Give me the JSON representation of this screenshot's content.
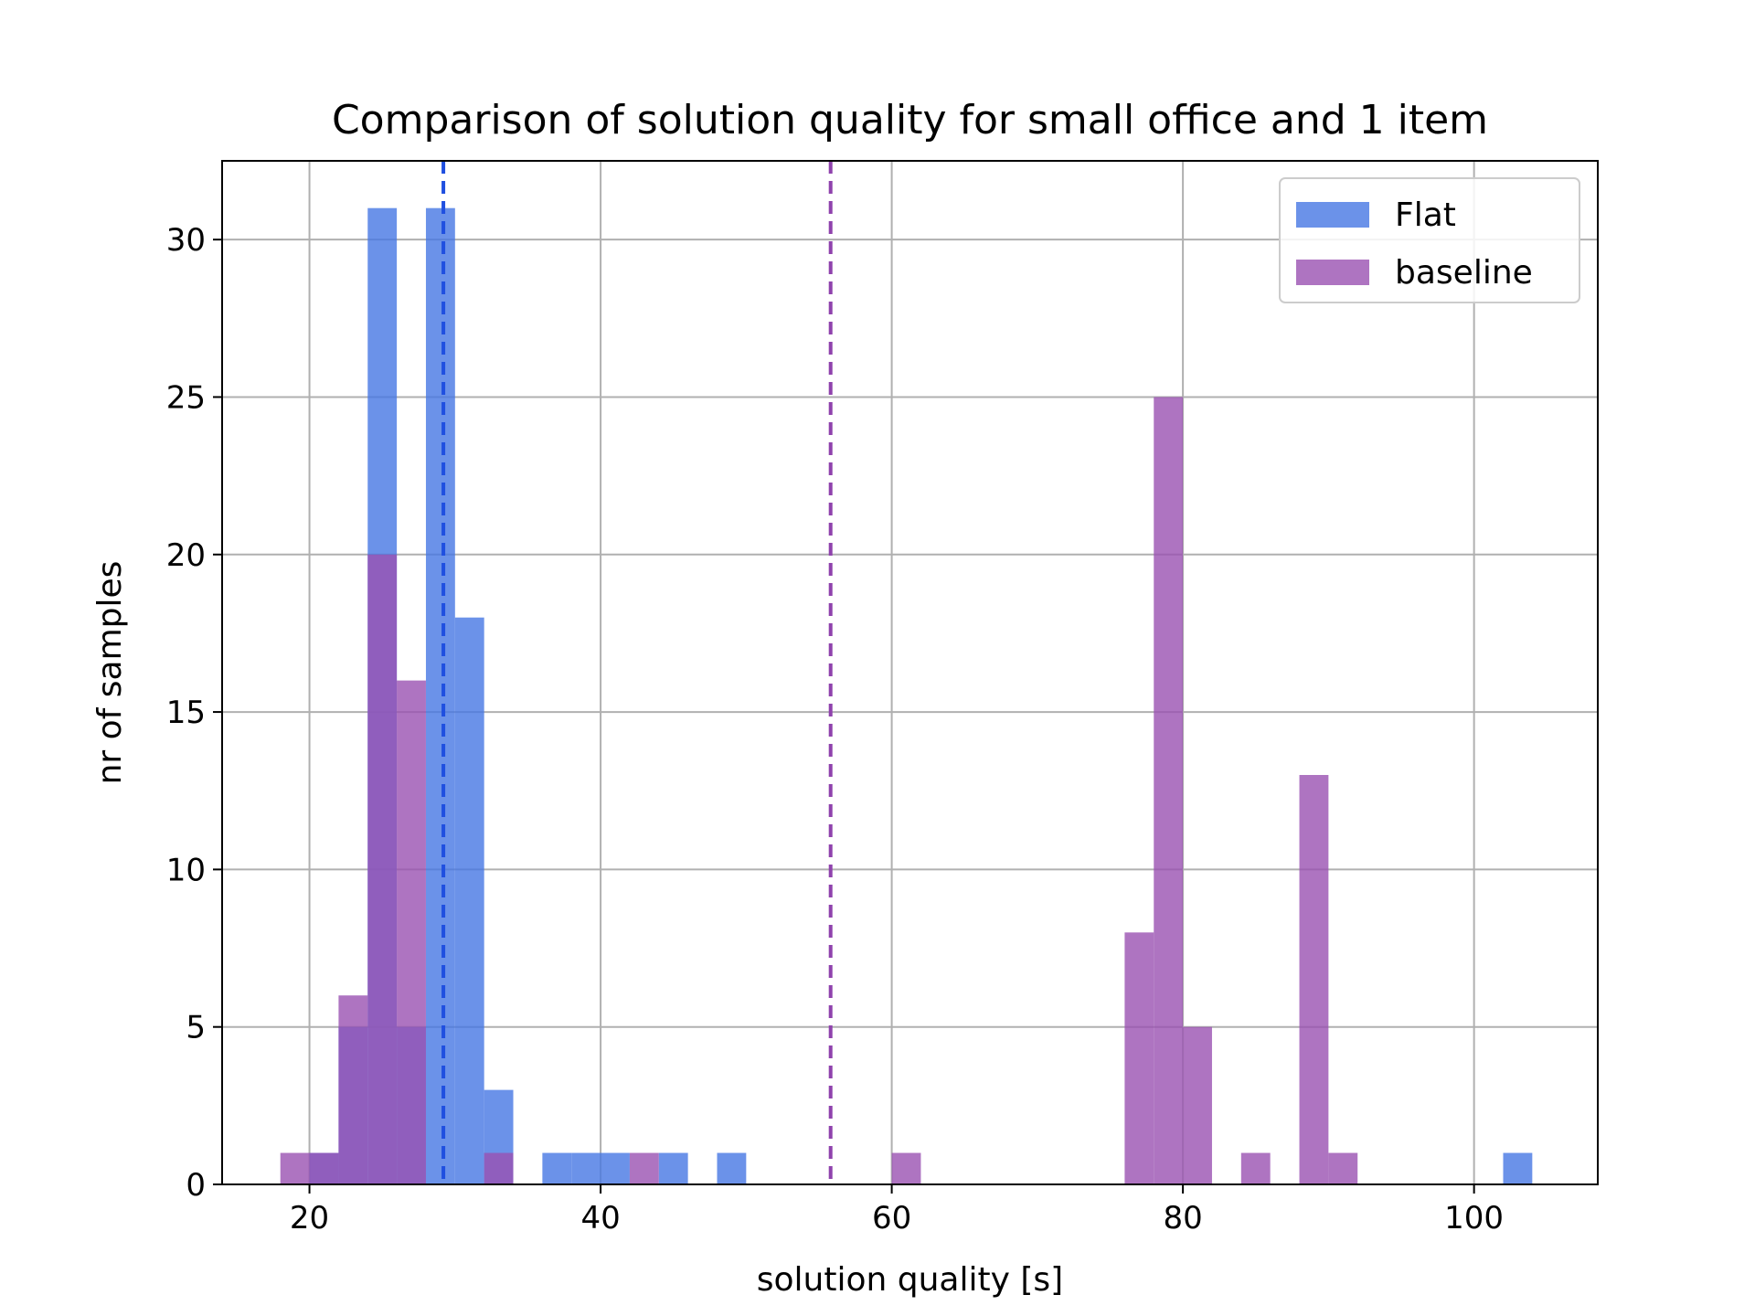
{
  "chart_data": {
    "type": "bar",
    "title": "Comparison of solution quality for small office and 1 item",
    "xlabel": "solution quality [s]",
    "ylabel": "nr of samples",
    "xlim": [
      14,
      108.5
    ],
    "ylim": [
      0,
      32.5
    ],
    "xticks": [
      20,
      40,
      60,
      80,
      100
    ],
    "yticks": [
      0,
      5,
      10,
      15,
      20,
      25,
      30
    ],
    "grid": true,
    "legend_position": "top-right",
    "bin_width": 2,
    "series": [
      {
        "name": "Flat",
        "color": "#4677e4",
        "bins": [
          {
            "x0": 20,
            "count": 1
          },
          {
            "x0": 22,
            "count": 5
          },
          {
            "x0": 24,
            "count": 31
          },
          {
            "x0": 26,
            "count": 5
          },
          {
            "x0": 28,
            "count": 31
          },
          {
            "x0": 30,
            "count": 18
          },
          {
            "x0": 32,
            "count": 3
          },
          {
            "x0": 36,
            "count": 1
          },
          {
            "x0": 38,
            "count": 1
          },
          {
            "x0": 40,
            "count": 1
          },
          {
            "x0": 44,
            "count": 1
          },
          {
            "x0": 48,
            "count": 1
          },
          {
            "x0": 102,
            "count": 1
          }
        ],
        "mean": 29.2
      },
      {
        "name": "baseline",
        "color": "#9a51b1",
        "bins": [
          {
            "x0": 18,
            "count": 1
          },
          {
            "x0": 20,
            "count": 1
          },
          {
            "x0": 22,
            "count": 6
          },
          {
            "x0": 24,
            "count": 20
          },
          {
            "x0": 26,
            "count": 16
          },
          {
            "x0": 32,
            "count": 1
          },
          {
            "x0": 42,
            "count": 1
          },
          {
            "x0": 60,
            "count": 1
          },
          {
            "x0": 76,
            "count": 8
          },
          {
            "x0": 78,
            "count": 25
          },
          {
            "x0": 80,
            "count": 5
          },
          {
            "x0": 84,
            "count": 1
          },
          {
            "x0": 88,
            "count": 13
          },
          {
            "x0": 90,
            "count": 1
          }
        ],
        "mean": 55.8
      }
    ],
    "mean_line_colors": [
      "#1f4fe0",
      "#8f42ad"
    ]
  }
}
